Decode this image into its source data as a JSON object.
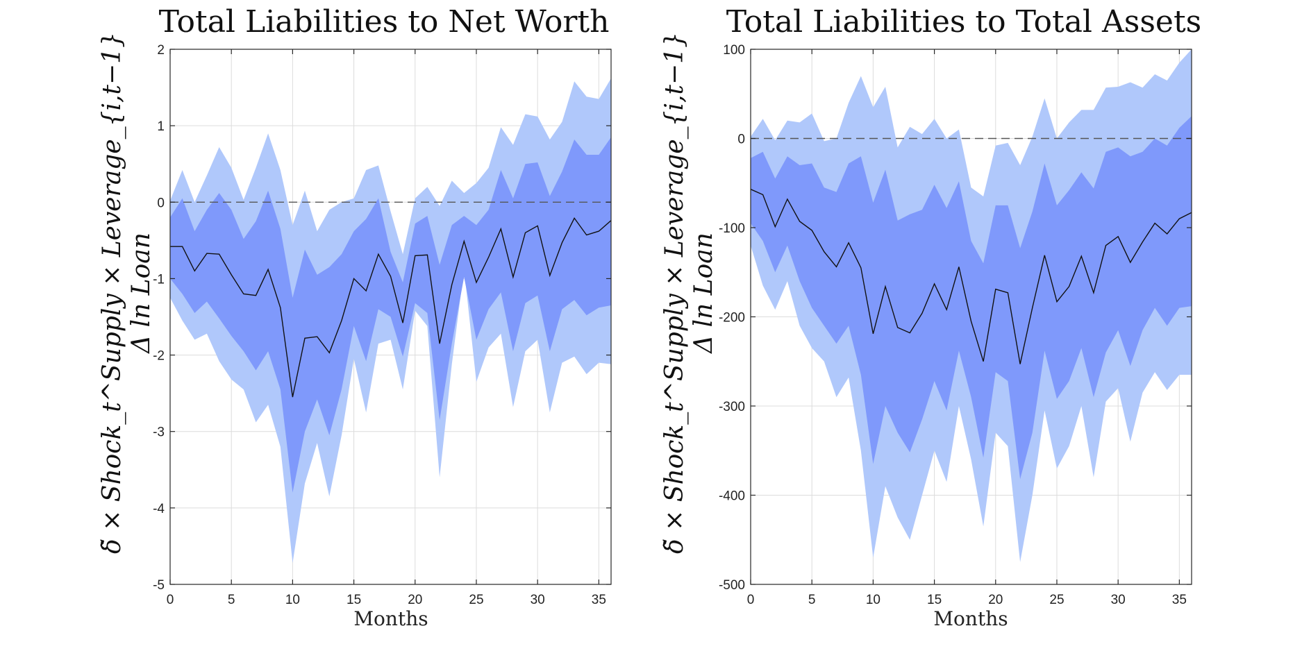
{
  "chart_data": [
    {
      "type": "area",
      "title": "Total Liabilities to Net Worth",
      "xlabel": "Months",
      "ylabel_line1": "δ̃ × Shock_t^Supply × Leverage_{i,t−1}",
      "ylabel_line2": "Δ ln Loan",
      "xlim": [
        0,
        36
      ],
      "ylim": [
        -5,
        2
      ],
      "xticks": [
        "0",
        "5",
        "10",
        "15",
        "20",
        "25",
        "30",
        "35"
      ],
      "yticks": [
        "-5",
        "-4",
        "-3",
        "-2",
        "-1",
        "0",
        "1",
        "2"
      ],
      "xtick_values": [
        0,
        5,
        10,
        15,
        20,
        25,
        30,
        35
      ],
      "ytick_values": [
        -5,
        -4,
        -3,
        -2,
        -1,
        0,
        1,
        2
      ],
      "grid": true,
      "reference_line": 0,
      "colors": {
        "outer_band": "#b0c8fb",
        "inner_band": "#7f99fb",
        "line": "#111111"
      },
      "x": [
        0,
        1,
        2,
        3,
        4,
        5,
        6,
        7,
        8,
        9,
        10,
        11,
        12,
        13,
        14,
        15,
        16,
        17,
        18,
        19,
        20,
        21,
        22,
        23,
        24,
        25,
        26,
        27,
        28,
        29,
        30,
        31,
        32,
        33,
        34,
        35,
        36
      ],
      "median": [
        -0.58,
        -0.58,
        -0.9,
        -0.67,
        -0.68,
        -0.95,
        -1.2,
        -1.22,
        -0.88,
        -1.38,
        -2.55,
        -1.78,
        -1.76,
        -1.97,
        -1.55,
        -1.0,
        -1.16,
        -0.68,
        -0.97,
        -1.58,
        -0.7,
        -0.69,
        -1.85,
        -1.08,
        -0.51,
        -1.05,
        -0.72,
        -0.35,
        -0.98,
        -0.4,
        -0.31,
        -0.96,
        -0.53,
        -0.21,
        -0.43,
        -0.38,
        -0.24
      ],
      "inner_upper": [
        -0.2,
        0.05,
        -0.38,
        -0.1,
        0.12,
        -0.1,
        -0.48,
        -0.25,
        0.15,
        -0.35,
        -1.25,
        -0.62,
        -0.95,
        -0.85,
        -0.68,
        -0.38,
        -0.22,
        0.05,
        -0.65,
        -1.05,
        -0.28,
        -0.18,
        -0.82,
        -0.3,
        -0.18,
        -0.3,
        -0.1,
        0.42,
        0.05,
        0.5,
        0.52,
        0.08,
        0.4,
        0.82,
        0.62,
        0.62,
        0.85
      ],
      "inner_lower": [
        -1.0,
        -1.2,
        -1.45,
        -1.3,
        -1.52,
        -1.75,
        -1.95,
        -2.2,
        -1.95,
        -2.45,
        -3.8,
        -3.0,
        -2.58,
        -3.05,
        -2.45,
        -1.62,
        -2.08,
        -1.4,
        -1.5,
        -2.02,
        -1.32,
        -1.45,
        -2.85,
        -1.85,
        -0.98,
        -1.8,
        -1.4,
        -1.18,
        -1.95,
        -1.32,
        -1.22,
        -1.95,
        -1.4,
        -1.28,
        -1.48,
        -1.38,
        -1.35
      ],
      "outer_upper": [
        0.02,
        0.42,
        0.0,
        0.35,
        0.72,
        0.45,
        0.03,
        0.45,
        0.9,
        0.42,
        -0.3,
        0.15,
        -0.38,
        -0.1,
        0.0,
        0.05,
        0.42,
        0.48,
        -0.12,
        -0.68,
        0.05,
        0.2,
        -0.05,
        0.28,
        0.12,
        0.25,
        0.45,
        0.98,
        0.75,
        1.15,
        1.12,
        0.82,
        1.05,
        1.58,
        1.38,
        1.35,
        1.62
      ],
      "outer_lower": [
        -1.25,
        -1.55,
        -1.8,
        -1.72,
        -2.08,
        -2.32,
        -2.45,
        -2.88,
        -2.65,
        -3.2,
        -4.72,
        -3.68,
        -3.15,
        -3.85,
        -3.05,
        -2.05,
        -2.75,
        -1.85,
        -1.8,
        -2.45,
        -1.42,
        -1.62,
        -3.6,
        -2.12,
        -0.88,
        -2.35,
        -1.9,
        -1.72,
        -2.68,
        -1.95,
        -1.8,
        -2.75,
        -2.1,
        -2.02,
        -2.25,
        -2.1,
        -2.12
      ]
    },
    {
      "type": "area",
      "title": "Total Liabilities to Total Assets",
      "xlabel": "Months",
      "ylabel_line1": "δ̃ × Shock_t^Supply × Leverage_{i,t−1}",
      "ylabel_line2": "Δ ln Loan",
      "xlim": [
        0,
        36
      ],
      "ylim": [
        -500,
        100
      ],
      "xticks": [
        "0",
        "5",
        "10",
        "15",
        "20",
        "25",
        "30",
        "35"
      ],
      "yticks": [
        "-500",
        "-400",
        "-300",
        "-200",
        "-100",
        "0",
        "100"
      ],
      "xtick_values": [
        0,
        5,
        10,
        15,
        20,
        25,
        30,
        35
      ],
      "ytick_values": [
        -500,
        -400,
        -300,
        -200,
        -100,
        0,
        100
      ],
      "grid": true,
      "reference_line": 0,
      "colors": {
        "outer_band": "#b0c8fb",
        "inner_band": "#7f99fb",
        "line": "#111111"
      },
      "x": [
        0,
        1,
        2,
        3,
        4,
        5,
        6,
        7,
        8,
        9,
        10,
        11,
        12,
        13,
        14,
        15,
        16,
        17,
        18,
        19,
        20,
        21,
        22,
        23,
        24,
        25,
        26,
        27,
        28,
        29,
        30,
        31,
        32,
        33,
        34,
        35,
        36
      ],
      "median": [
        -57,
        -63,
        -99,
        -68,
        -93,
        -103,
        -127,
        -144,
        -117,
        -145,
        -219,
        -166,
        -212,
        -218,
        -196,
        -163,
        -192,
        -144,
        -205,
        -250,
        -169,
        -173,
        -253,
        -190,
        -131,
        -183,
        -166,
        -132,
        -173,
        -120,
        -110,
        -139,
        -116,
        -95,
        -107,
        -90,
        -83
      ],
      "inner_upper": [
        -22,
        -15,
        -45,
        -20,
        -30,
        -28,
        -55,
        -60,
        -28,
        -20,
        -72,
        -35,
        -92,
        -85,
        -80,
        -52,
        -78,
        -48,
        -115,
        -140,
        -75,
        -75,
        -123,
        -82,
        -28,
        -75,
        -58,
        -38,
        -56,
        -15,
        -10,
        -20,
        -15,
        0,
        -8,
        12,
        25
      ],
      "inner_lower": [
        -95,
        -115,
        -150,
        -120,
        -160,
        -190,
        -210,
        -230,
        -210,
        -265,
        -365,
        -300,
        -330,
        -352,
        -315,
        -272,
        -305,
        -238,
        -290,
        -358,
        -262,
        -272,
        -382,
        -330,
        -238,
        -292,
        -272,
        -235,
        -290,
        -240,
        -215,
        -255,
        -215,
        -190,
        -210,
        -190,
        -188
      ],
      "outer_upper": [
        2,
        22,
        -2,
        20,
        18,
        28,
        -3,
        0,
        40,
        70,
        35,
        58,
        -10,
        13,
        5,
        22,
        0,
        10,
        -55,
        -65,
        -8,
        -5,
        -30,
        2,
        45,
        0,
        18,
        32,
        32,
        57,
        58,
        63,
        57,
        72,
        65,
        85,
        100
      ],
      "outer_lower": [
        -120,
        -165,
        -192,
        -160,
        -210,
        -235,
        -250,
        -290,
        -268,
        -350,
        -470,
        -390,
        -425,
        -450,
        -400,
        -350,
        -385,
        -300,
        -360,
        -435,
        -330,
        -345,
        -475,
        -400,
        -305,
        -370,
        -345,
        -300,
        -380,
        -295,
        -280,
        -340,
        -285,
        -262,
        -282,
        -265,
        -265
      ]
    }
  ]
}
